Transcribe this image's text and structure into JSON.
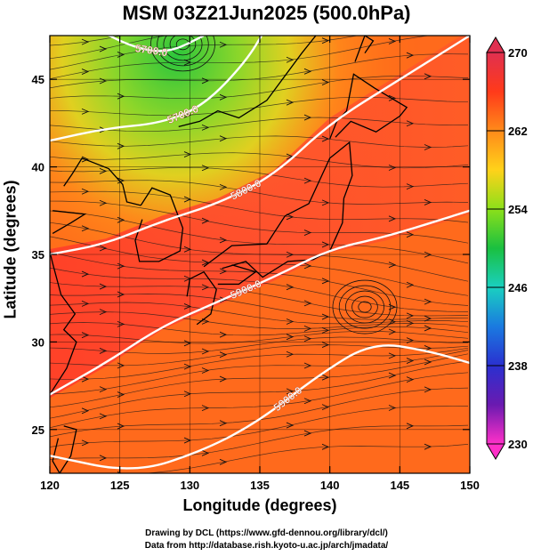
{
  "title": "MSM 03Z21Jun2025 (500.0hPa)",
  "xlabel": "Longitude (degrees)",
  "ylabel": "Latitude  (degrees)",
  "credits": [
    "Drawing by DCL (https://www.gfd-dennou.org/library/dcl/)",
    "Data from http://database.rish.kyoto-u.ac.jp/arch/jmadata/"
  ],
  "chart_data": {
    "type": "heatmap",
    "x": {
      "range": [
        120,
        150
      ],
      "ticks": [
        "120",
        "125",
        "130",
        "135",
        "140",
        "145",
        "150"
      ]
    },
    "y": {
      "range": [
        22.5,
        47.5
      ],
      "ticks": [
        "25",
        "30",
        "35",
        "40",
        "45"
      ]
    },
    "colorbar": {
      "range": [
        230,
        270
      ],
      "labels": [
        "270",
        "262",
        "254",
        "246",
        "238",
        "230"
      ],
      "colors": [
        "#e03050",
        "#ff3a1a",
        "#ff8a1a",
        "#ffd21a",
        "#8ce01a",
        "#1ac040",
        "#1ad0c0",
        "#1a7ae0",
        "#2a30d0",
        "#6a1ab0",
        "#ff30c8"
      ]
    },
    "contours": [
      {
        "label": "5700.0",
        "points": [
          [
            123.0,
            48.0
          ],
          [
            126.0,
            46.8
          ],
          [
            128.5,
            46.5
          ],
          [
            131.0,
            47.5
          ]
        ]
      },
      {
        "label": "5700.0",
        "points": [
          [
            120.0,
            41.5
          ],
          [
            124.0,
            42.2
          ],
          [
            128.0,
            42.5
          ],
          [
            131.0,
            43.5
          ],
          [
            134.0,
            46.0
          ],
          [
            135.5,
            48.0
          ]
        ]
      },
      {
        "label": "5800.0",
        "points": [
          [
            120.0,
            35.0
          ],
          [
            124.0,
            35.6
          ],
          [
            128.0,
            36.9
          ],
          [
            132.0,
            37.9
          ],
          [
            136.0,
            39.5
          ],
          [
            140.0,
            42.5
          ],
          [
            145.0,
            45.0
          ],
          [
            150.0,
            47.5
          ]
        ]
      },
      {
        "label": "5900.0",
        "points": [
          [
            120.0,
            27.0
          ],
          [
            124.0,
            28.8
          ],
          [
            128.0,
            30.9
          ],
          [
            132.0,
            32.3
          ],
          [
            136.0,
            33.7
          ],
          [
            140.0,
            35.3
          ],
          [
            144.0,
            36.0
          ],
          [
            150.0,
            37.5
          ]
        ]
      },
      {
        "label": "5900.0",
        "points": [
          [
            120.0,
            23.5
          ],
          [
            126.0,
            22.5
          ],
          [
            131.0,
            23.8
          ],
          [
            135.0,
            25.5
          ],
          [
            139.0,
            28.0
          ],
          [
            143.0,
            30.0
          ],
          [
            147.0,
            29.5
          ],
          [
            150.0,
            28.8
          ]
        ]
      }
    ]
  }
}
